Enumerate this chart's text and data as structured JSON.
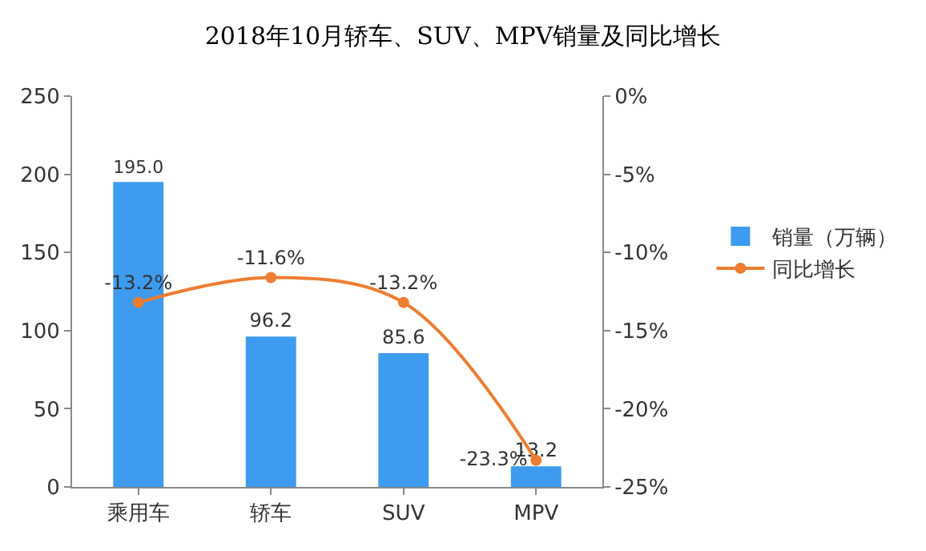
{
  "chart_data": {
    "type": "bar",
    "title": "2018年10月轿车、SUV、MPV销量及同比增长",
    "categories": [
      "乘用车",
      "轿车",
      "SUV",
      "MPV"
    ],
    "series": [
      {
        "name": "销量（万辆）",
        "color": "#3d9cf0",
        "values": [
          195.0,
          96.2,
          85.6,
          13.2
        ],
        "value_labels": [
          "195.0",
          "96.2",
          "85.6",
          "13.2"
        ]
      },
      {
        "name": "同比增长",
        "type": "line",
        "axis": "y2",
        "color": "#ed7d31",
        "marker": "circle",
        "values": [
          -13.2,
          -11.6,
          -13.2,
          -23.3
        ],
        "value_labels": [
          "-13.2%",
          "-11.6%",
          "-13.2%",
          "-23.3%"
        ]
      }
    ],
    "ylim": [
      0,
      250
    ],
    "yticks": [
      0,
      50,
      100,
      150,
      200,
      250
    ],
    "y2lim": [
      -25,
      0
    ],
    "y2ticks": [
      {
        "value": -25,
        "label": "-25%"
      },
      {
        "value": -20,
        "label": "-20%"
      },
      {
        "value": -15,
        "label": "-15%"
      },
      {
        "value": -10,
        "label": "-10%"
      },
      {
        "value": -5,
        "label": "-5%"
      },
      {
        "value": 0,
        "label": "0%"
      }
    ],
    "grid": false,
    "legend": "right"
  }
}
